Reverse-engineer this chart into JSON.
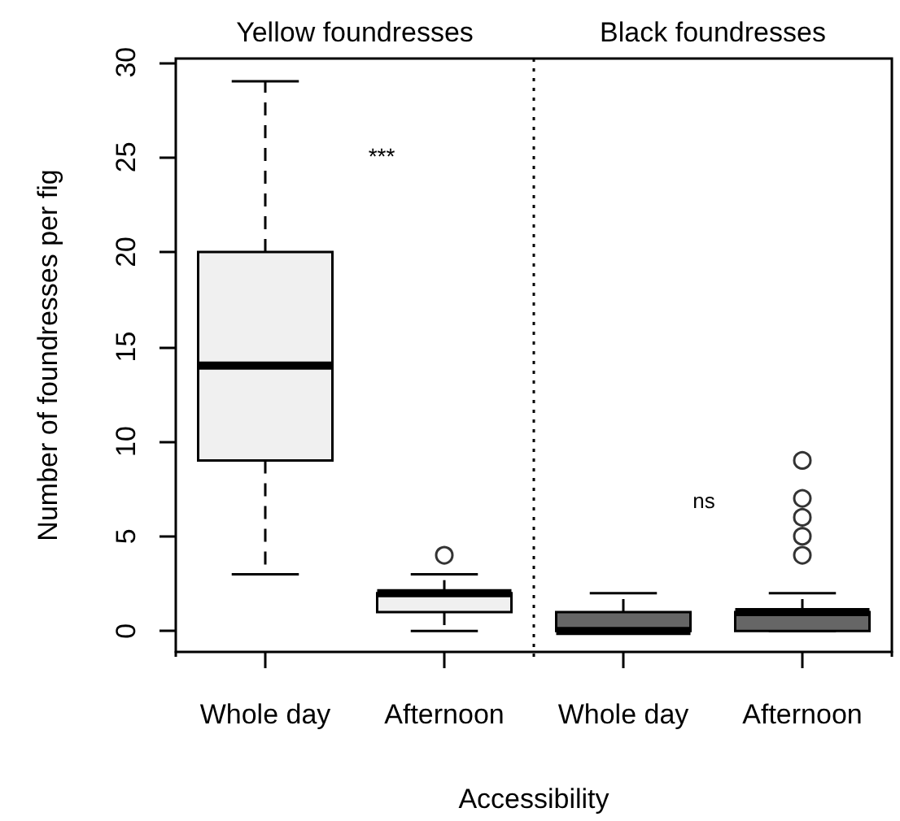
{
  "chart_data": {
    "type": "box",
    "xlabel": "Accessibility",
    "ylabel": "Number of foundresses per fig",
    "categories": [
      "Whole day",
      "Afternoon",
      "Whole day",
      "Afternoon"
    ],
    "colors": [
      "#f0f0f0",
      "#f0f0f0",
      "#666666",
      "#666666"
    ],
    "boxes": [
      {
        "low": 3,
        "q1": 9,
        "median": 14,
        "q3": 20,
        "high": 29
      },
      {
        "low": 0,
        "q1": 1,
        "median": 2,
        "q3": 2,
        "high": 3,
        "outliers": [
          4
        ]
      },
      {
        "low": 0,
        "q1": 0,
        "median": 0,
        "q3": 1,
        "high": 2
      },
      {
        "low": 0,
        "q1": 0,
        "median": 1,
        "q3": 1,
        "high": 2,
        "outliers": [
          4,
          5,
          6,
          7,
          9
        ]
      }
    ],
    "ylim": [
      -1.1,
      30.2
    ],
    "yticks": [
      0,
      5,
      10,
      15,
      20,
      25,
      30
    ],
    "grid": false,
    "legend": false,
    "annotations": [
      "Yellow foundresses",
      "Black foundresses",
      "***",
      "ns"
    ]
  }
}
